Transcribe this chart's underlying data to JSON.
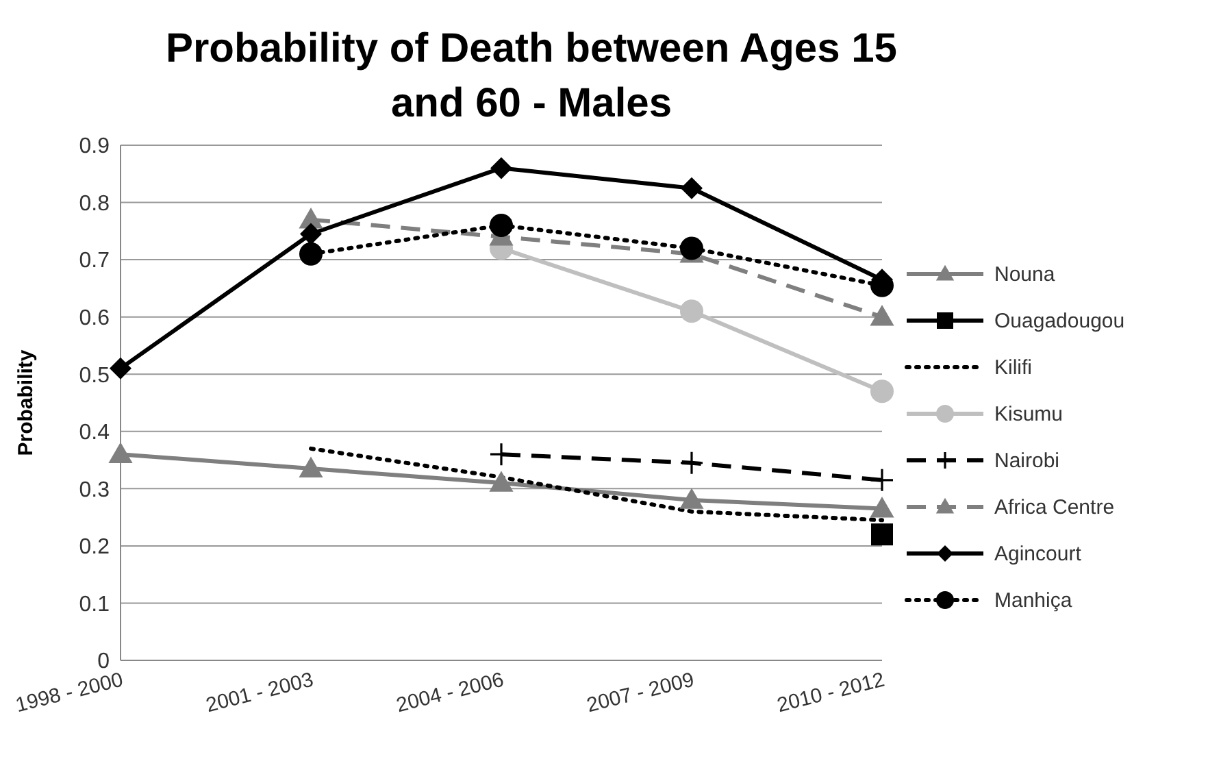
{
  "chart_data": {
    "type": "line",
    "title": "Probability of Death between Ages 15 and 60 - Males",
    "ylabel": "Probability",
    "categories": [
      "1998 - 2000",
      "2001 - 2003",
      "2004 - 2006",
      "2007 - 2009",
      "2010 - 2012"
    ],
    "ylim": [
      0,
      0.9
    ],
    "yticks": [
      0,
      0.1,
      0.2,
      0.3,
      0.4,
      0.5,
      0.6,
      0.7,
      0.8,
      0.9
    ],
    "grid": "y",
    "legend": "right",
    "series": [
      {
        "name": "Nouna",
        "color": "#7f7f7f",
        "marker": "triangle",
        "line_style": "solid",
        "values": [
          0.36,
          0.335,
          0.31,
          0.28,
          0.265
        ]
      },
      {
        "name": "Ouagadougou",
        "color": "#000000",
        "marker": "square",
        "line_style": "solid",
        "values": [
          null,
          null,
          null,
          null,
          0.22
        ]
      },
      {
        "name": "Kilifi",
        "color": "#000000",
        "marker": "none",
        "line_style": "dotted",
        "values": [
          null,
          0.37,
          0.32,
          0.26,
          0.245
        ]
      },
      {
        "name": "Kisumu",
        "color": "#bfbfbf",
        "marker": "circle",
        "line_style": "solid",
        "values": [
          null,
          null,
          0.72,
          0.61,
          0.47
        ]
      },
      {
        "name": "Nairobi",
        "color": "#000000",
        "marker": "cross",
        "line_style": "dashed",
        "values": [
          null,
          null,
          0.36,
          0.345,
          0.315
        ]
      },
      {
        "name": "Africa Centre",
        "color": "#7f7f7f",
        "marker": "triangle",
        "line_style": "dashed",
        "values": [
          null,
          0.77,
          0.74,
          0.71,
          0.6
        ]
      },
      {
        "name": "Agincourt",
        "color": "#000000",
        "marker": "diamond",
        "line_style": "solid",
        "values": [
          0.51,
          0.745,
          0.86,
          0.825,
          0.665
        ]
      },
      {
        "name": "Manhiça",
        "color": "#000000",
        "marker": "circle",
        "line_style": "dotted",
        "values": [
          null,
          0.71,
          0.76,
          0.72,
          0.655
        ]
      }
    ]
  }
}
